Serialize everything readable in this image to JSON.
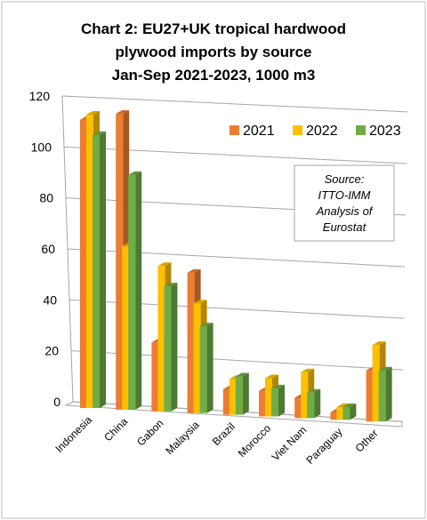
{
  "chart_data": {
    "type": "bar",
    "title_lines": [
      "Chart 2: EU27+UK tropical  hardwood",
      "plywood imports by source",
      "Jan-Sep 2021-2023, 1000 m3"
    ],
    "categories": [
      "Indonesia",
      "China",
      "Gabon",
      "Malaysia",
      "Brazil",
      "Morocco",
      "Viet Nam",
      "Paraguay",
      "Other"
    ],
    "series": [
      {
        "name": "2021",
        "color": "#ED7D31",
        "values": [
          113,
          116,
          27,
          55,
          10,
          10,
          8,
          3,
          20
        ]
      },
      {
        "name": "2022",
        "color": "#FFC000",
        "values": [
          115,
          64,
          57,
          43,
          14,
          15,
          18,
          5,
          30
        ]
      },
      {
        "name": "2023",
        "color": "#70AD47",
        "values": [
          107,
          92,
          49,
          34,
          15,
          11,
          10,
          5,
          20
        ]
      }
    ],
    "y_ticks": [
      "0",
      "20",
      "40",
      "60",
      "80",
      "100",
      "120"
    ],
    "ylim": [
      0,
      120
    ],
    "grid": true,
    "legend_position": "top-right",
    "annotation_lines": [
      "Source:",
      "ITTO-IMM",
      "Analysis of",
      "Eurostat"
    ]
  }
}
